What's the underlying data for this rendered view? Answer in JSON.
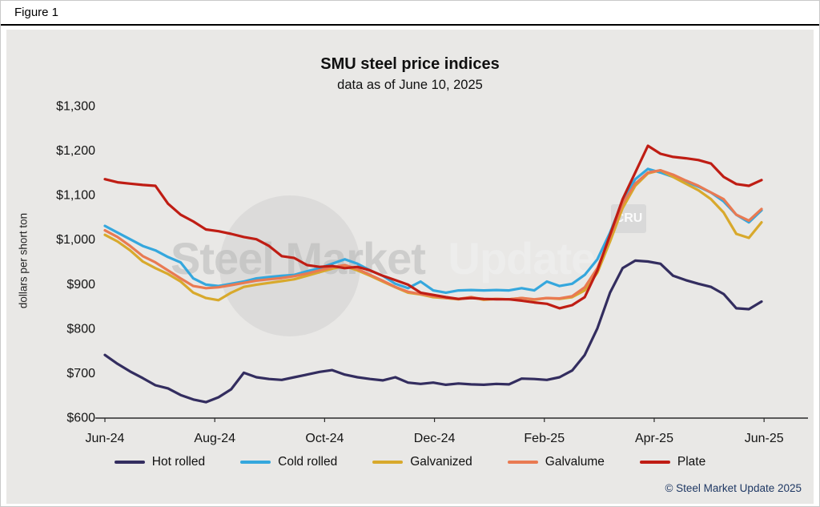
{
  "figure_label": "Figure 1",
  "watermark": {
    "line1": "Steel Market",
    "line2": "Update",
    "cru": "CRU"
  },
  "footer": {
    "copyright": "© Steel Market Update 2025"
  },
  "chart_data": {
    "type": "line",
    "title": "SMU steel price indices",
    "subtitle": "data as of June 10, 2025",
    "ylabel": "dollars per short ton",
    "ylim": [
      600,
      1300
    ],
    "ytick_step": 100,
    "ytick_labels": [
      "$600",
      "$700",
      "$800",
      "$900",
      "$1,000",
      "$1,100",
      "$1,200",
      "$1,300"
    ],
    "x_unit": "weekly index, Jun-24 through Jun-25",
    "xtick_labels": [
      "Jun-24",
      "Aug-24",
      "Oct-24",
      "Dec-24",
      "Feb-25",
      "Apr-25",
      "Jun-25"
    ],
    "xtick_positions": [
      0,
      8.7,
      17.4,
      26.1,
      34.8,
      43.5,
      52.2
    ],
    "grid": false,
    "legend_position": "bottom",
    "series": [
      {
        "name": "Hot rolled",
        "color": "#332d5f",
        "values": [
          740,
          720,
          703,
          688,
          672,
          665,
          650,
          640,
          634,
          645,
          663,
          700,
          690,
          686,
          684,
          690,
          696,
          702,
          706,
          696,
          690,
          686,
          683,
          690,
          678,
          675,
          678,
          673,
          676,
          674,
          673,
          675,
          674,
          687,
          686,
          684,
          690,
          705,
          740,
          800,
          880,
          935,
          952,
          950,
          945,
          918,
          908,
          900,
          893,
          877,
          845,
          843,
          860
        ]
      },
      {
        "name": "Cold rolled",
        "color": "#35a7dd",
        "values": [
          1030,
          1015,
          1000,
          985,
          975,
          960,
          948,
          912,
          898,
          895,
          900,
          905,
          912,
          915,
          918,
          920,
          928,
          935,
          945,
          955,
          945,
          930,
          918,
          900,
          890,
          905,
          885,
          880,
          885,
          886,
          885,
          886,
          885,
          890,
          885,
          905,
          895,
          900,
          920,
          955,
          1015,
          1085,
          1135,
          1158,
          1150,
          1140,
          1130,
          1118,
          1105,
          1085,
          1055,
          1038,
          1065
        ]
      },
      {
        "name": "Galvanized",
        "color": "#d8a92c",
        "values": [
          1010,
          995,
          975,
          950,
          935,
          922,
          905,
          880,
          868,
          863,
          880,
          893,
          898,
          902,
          906,
          910,
          918,
          926,
          934,
          940,
          930,
          918,
          905,
          892,
          880,
          876,
          870,
          868,
          865,
          870,
          864,
          866,
          865,
          868,
          864,
          868,
          866,
          870,
          885,
          925,
          995,
          1070,
          1120,
          1148,
          1155,
          1140,
          1125,
          1110,
          1090,
          1060,
          1012,
          1003,
          1038
        ]
      },
      {
        "name": "Galvalume",
        "color": "#e97a52",
        "values": [
          1020,
          1005,
          985,
          962,
          948,
          930,
          912,
          895,
          890,
          892,
          897,
          902,
          907,
          910,
          913,
          917,
          923,
          930,
          937,
          942,
          933,
          920,
          907,
          893,
          882,
          877,
          872,
          868,
          866,
          870,
          865,
          866,
          865,
          868,
          865,
          868,
          867,
          872,
          892,
          935,
          1005,
          1080,
          1125,
          1150,
          1155,
          1145,
          1132,
          1120,
          1105,
          1090,
          1055,
          1042,
          1068
        ]
      },
      {
        "name": "Plate",
        "color": "#bf1d14",
        "values": [
          1135,
          1128,
          1125,
          1122,
          1120,
          1080,
          1055,
          1040,
          1022,
          1018,
          1012,
          1005,
          1000,
          985,
          962,
          958,
          942,
          938,
          940,
          935,
          938,
          930,
          918,
          908,
          898,
          880,
          875,
          870,
          866,
          868,
          866,
          865,
          865,
          862,
          858,
          855,
          845,
          852,
          870,
          930,
          1010,
          1090,
          1150,
          1210,
          1192,
          1185,
          1182,
          1178,
          1170,
          1140,
          1124,
          1120,
          1133
        ]
      }
    ]
  }
}
